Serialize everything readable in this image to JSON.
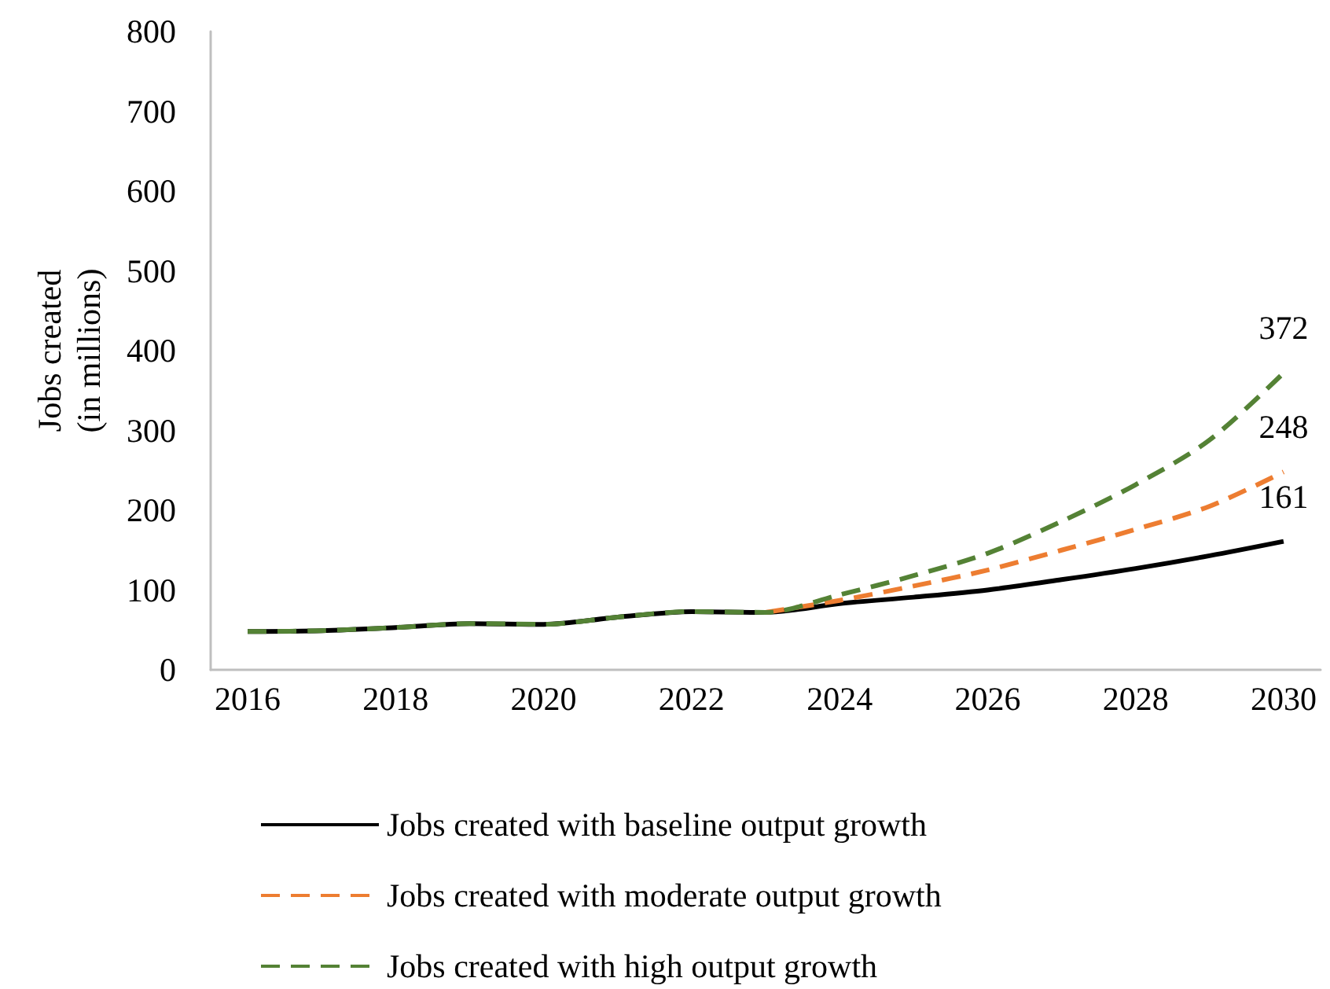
{
  "chart_data": {
    "type": "line",
    "ylabel": "Jobs created\n(in millions)",
    "categories": [
      "2016",
      null,
      "2018",
      null,
      "2020",
      null,
      "2022",
      null,
      "2024",
      null,
      "2026",
      null,
      "2028",
      null,
      "2030"
    ],
    "series": [
      {
        "name": "Jobs created with baseline output growth",
        "color": "#000000",
        "line_style": "solid",
        "values": [
          48,
          49,
          53,
          58,
          57,
          66,
          73,
          72,
          83,
          91,
          100,
          113,
          127,
          143,
          161
        ],
        "value_labels": [
          null,
          null,
          null,
          null,
          null,
          null,
          null,
          null,
          null,
          null,
          null,
          null,
          null,
          null,
          "161"
        ]
      },
      {
        "name": "Jobs created with moderate output growth",
        "color": "#ed7d31",
        "line_style": "dashed",
        "values": [
          null,
          null,
          null,
          null,
          null,
          null,
          null,
          72,
          87,
          105,
          125,
          150,
          176,
          205,
          248
        ],
        "value_labels": [
          null,
          null,
          null,
          null,
          null,
          null,
          null,
          null,
          null,
          null,
          null,
          null,
          null,
          null,
          "248"
        ]
      },
      {
        "name": "Jobs created with high output growth",
        "color": "#548235",
        "line_style": "dashed",
        "values": [
          48,
          49,
          53,
          58,
          57,
          66,
          73,
          72,
          94,
          118,
          146,
          186,
          232,
          288,
          372
        ],
        "value_labels": [
          null,
          null,
          null,
          null,
          null,
          null,
          null,
          null,
          null,
          null,
          null,
          null,
          null,
          null,
          "372"
        ]
      }
    ],
    "ylim": [
      0,
      800
    ],
    "yticks": [
      0,
      100,
      200,
      300,
      400,
      500,
      600,
      700,
      800
    ],
    "marker": "none",
    "legend": "bottom"
  }
}
